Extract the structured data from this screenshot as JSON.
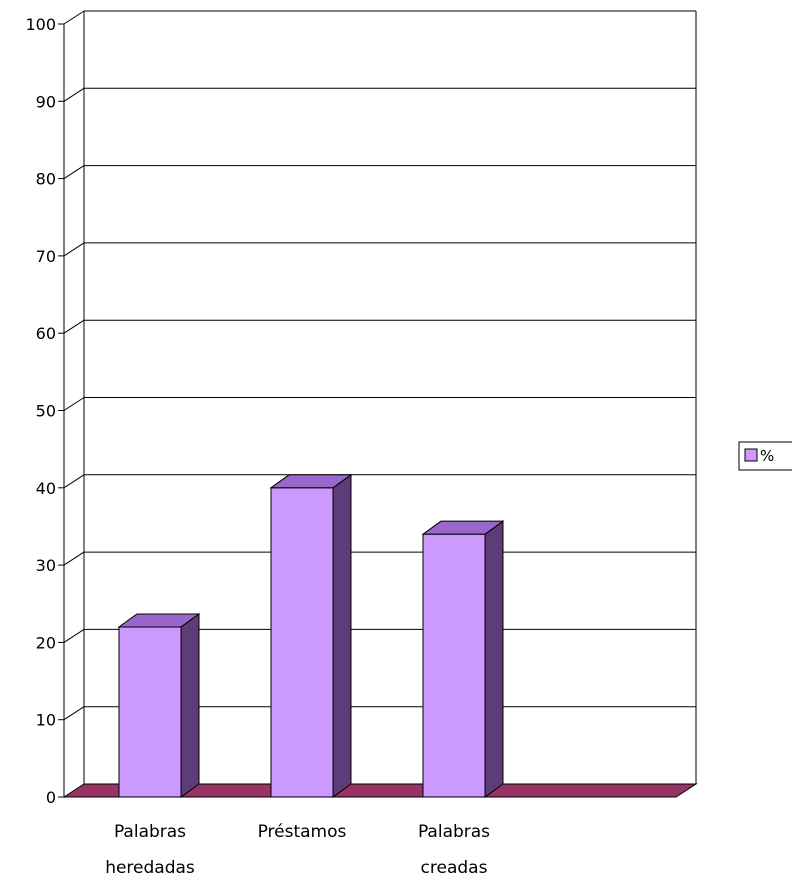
{
  "chart_data": {
    "type": "bar",
    "style": "3d-column",
    "categories": [
      [
        "Palabras",
        "heredadas"
      ],
      [
        "Préstamos"
      ],
      [
        "Palabras",
        "creadas"
      ]
    ],
    "series": [
      {
        "name": "%",
        "values": [
          22,
          40,
          34
        ]
      }
    ],
    "ylim": [
      0,
      100
    ],
    "yticks": [
      "0",
      "10",
      "20",
      "30",
      "40",
      "50",
      "60",
      "70",
      "80",
      "90",
      "100"
    ],
    "grid": true,
    "legend": "right",
    "colors": {
      "bar_front": "#cc99ff",
      "bar_side": "#5c3d78",
      "bar_top": "#9966cc",
      "floor": "#993366",
      "grid": "#000000"
    }
  }
}
